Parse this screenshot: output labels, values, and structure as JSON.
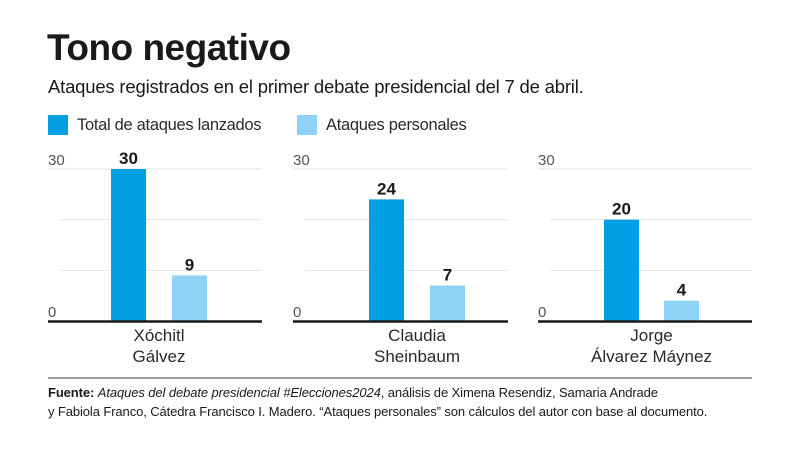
{
  "chart_data": {
    "type": "bar",
    "title": "Tono negativo",
    "subtitle": "Ataques registrados en el primer debate presidencial del 7 de abril.",
    "legend": [
      {
        "name": "Total de ataques lanzados",
        "color": "#009FE3"
      },
      {
        "name": "Ataques personales",
        "color": "#8ED3F5"
      }
    ],
    "legend_position": "top-left",
    "ylim": [
      0,
      30
    ],
    "yticks": [
      "0",
      "30"
    ],
    "grid": true,
    "gridline_values": [
      10,
      20,
      30
    ],
    "panels": [
      {
        "category": "Xóchitl Gálvez",
        "label_lines": [
          "Xóchitl",
          "Gálvez"
        ],
        "values": [
          30,
          9
        ]
      },
      {
        "category": "Claudia Sheinbaum",
        "label_lines": [
          "Claudia",
          "Sheinbaum"
        ],
        "values": [
          24,
          7
        ]
      },
      {
        "category": "Jorge Álvarez Máynez",
        "label_lines": [
          "Jorge",
          "Álvarez Máynez"
        ],
        "values": [
          20,
          4
        ]
      }
    ],
    "series": [
      {
        "name": "Total de ataques lanzados",
        "values": [
          30,
          24,
          20
        ]
      },
      {
        "name": "Ataques personales",
        "values": [
          9,
          7,
          4
        ]
      }
    ],
    "categories": [
      "Xóchitl Gálvez",
      "Claudia Sheinbaum",
      "Jorge Álvarez Máynez"
    ],
    "xlabel": "",
    "ylabel": ""
  },
  "footnote": {
    "source_label": "Fuente:",
    "source_title": "Ataques del debate presidencial #Elecciones2024",
    "rest_line1": ", análisis de Ximena Resendiz, Samaria Andrade",
    "line2": "y Fabiola Franco, Cátedra Francisco I. Madero. “Ataques personales” son cálculos del autor con base al documento."
  },
  "colors": {
    "primary": "#009FE3",
    "secondary": "#8ED3F5",
    "text": "#1a1a1a",
    "gridline": "#e6e6e6",
    "baseline": "#1a1a1a",
    "separator": "#9a9a9a"
  }
}
